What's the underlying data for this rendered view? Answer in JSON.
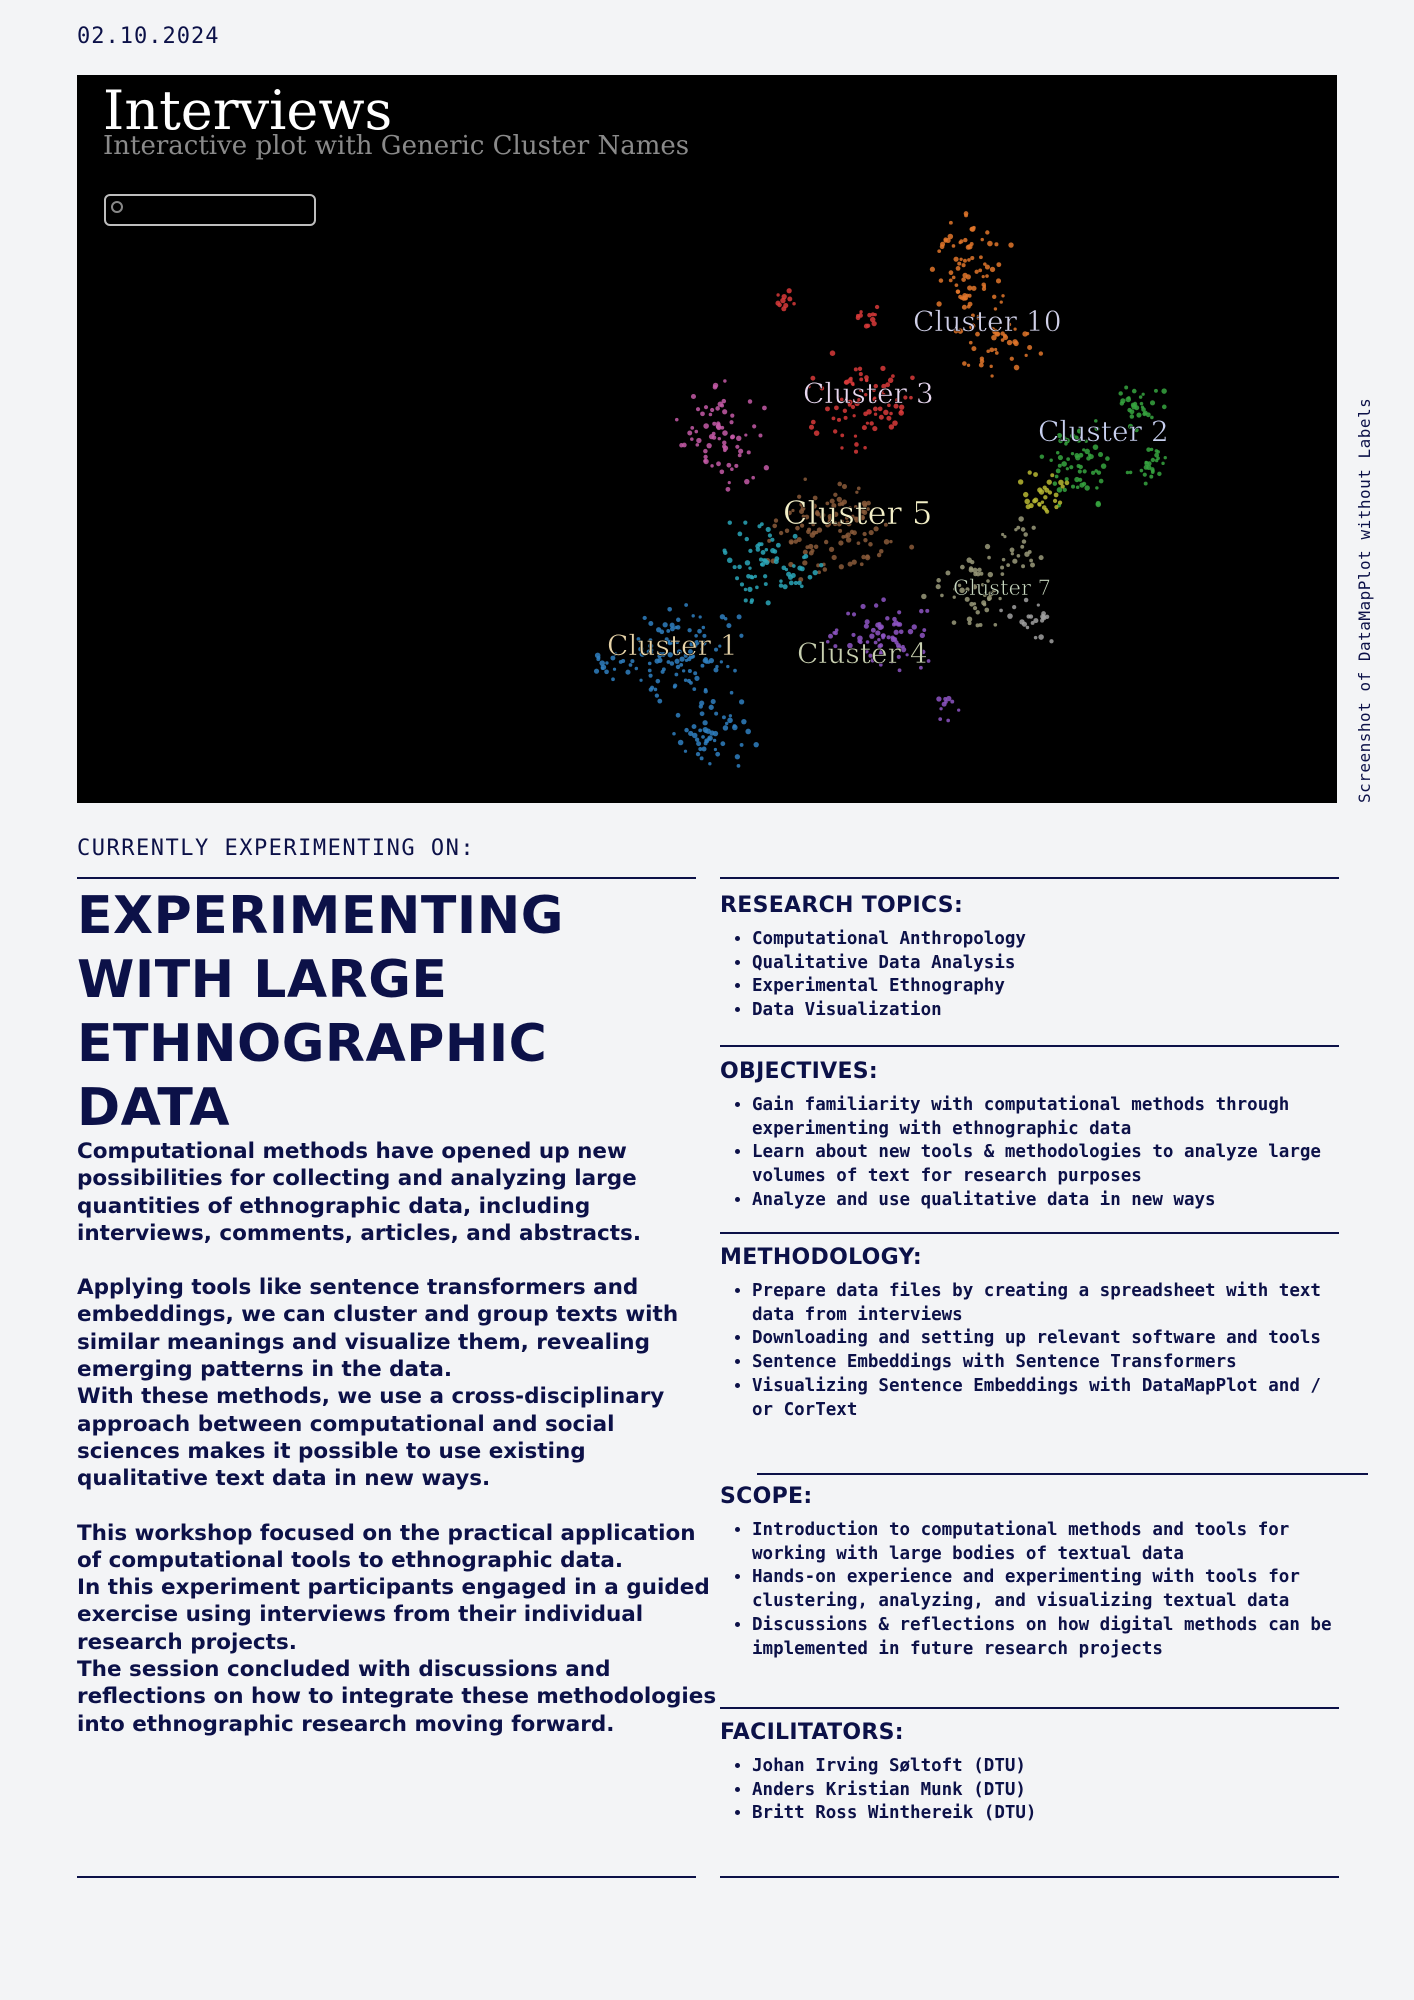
{
  "date": "02.10.2024",
  "plot": {
    "title": "Interviews",
    "subtitle": "Interactive plot with Generic Cluster Names",
    "caption": "Screenshot of DataMapPlot without Labels",
    "clusters": [
      {
        "name": "Cluster 10",
        "color": "#e0762a"
      },
      {
        "name": "Cluster 3",
        "color": "#d83a3a"
      },
      {
        "name": "Cluster 2",
        "color": "#36a540"
      },
      {
        "name": "Cluster 5",
        "color": "#8a5a3a"
      },
      {
        "name": "Cluster 7",
        "color": "#9a9a7a"
      },
      {
        "name": "Cluster 1",
        "color": "#2f7fbf"
      },
      {
        "name": "Cluster 4",
        "color": "#8e55c4"
      }
    ]
  },
  "experimenting_label": "CURRENTLY EXPERIMENTING ON:",
  "headline": [
    "EXPERIMENTING",
    "WITH LARGE",
    "ETHNOGRAPHIC DATA"
  ],
  "body": {
    "p1": "Computational methods have opened up new possibilities for collecting and analyzing large quantities of ethnographic data, including interviews, comments, articles, and abstracts.",
    "p2": "Applying tools like sentence transformers and embeddings, we can cluster and group texts with similar meanings and visualize them, revealing emerging patterns in the data.",
    "p3": "With these methods, we use a cross-disciplinary approach between computational and social sciences makes it possible to use existing qualitative text data in new ways.",
    "p4": "This workshop focused on the practical application of computational tools to ethnographic data.",
    "p5": "In this experiment participants engaged in a guided exercise using interviews from their individual research projects.",
    "p6": "The session concluded with discussions and reflections on how to integrate these methodologies into ethnographic research moving forward."
  },
  "sections": {
    "research_topics": {
      "title": "RESEARCH TOPICS:",
      "items": [
        "Computational Anthropology",
        "Qualitative Data Analysis",
        "Experimental Ethnography",
        "Data Visualization"
      ]
    },
    "objectives": {
      "title": "OBJECTIVES:",
      "items": [
        "Gain familiarity with computational methods through experimenting with ethnographic data",
        "Learn about new tools & methodologies to analyze large volumes of text for research purposes",
        "Analyze and use qualitative data in new ways"
      ]
    },
    "methodology": {
      "title": "METHODOLOGY:",
      "items": [
        "Prepare data files by creating a spreadsheet with text data from interviews",
        "Downloading and setting up relevant software and tools",
        "Sentence Embeddings with Sentence Transformers",
        "Visualizing Sentence Embeddings with DataMapPlot and / or CorText"
      ]
    },
    "scope": {
      "title": "SCOPE:",
      "items": [
        "Introduction to computational methods and tools for working with large bodies of textual data",
        "Hands-on experience and experimenting with tools for clustering, analyzing, and visualizing textual data",
        "Discussions & reflections on  how digital methods can be implemented in future research projects"
      ]
    },
    "facilitators": {
      "title": "FACILITATORS:",
      "items": [
        "Johan Irving Søltoft (DTU)",
        "Anders Kristian Munk (DTU)",
        "Britt Ross Winthereik (DTU)"
      ]
    }
  }
}
